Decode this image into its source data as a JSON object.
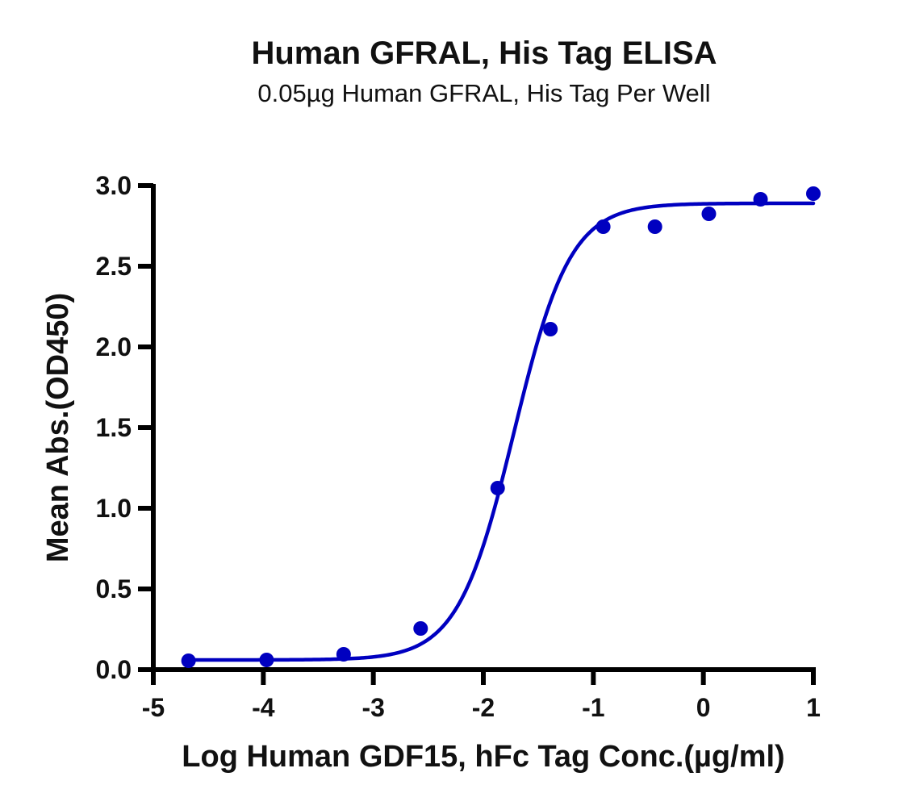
{
  "chart_data": {
    "type": "scatter",
    "title": "Human GFRAL, His Tag ELISA",
    "subtitle": "0.05µg Human GFRAL, His Tag Per Well",
    "xlabel": "Log Human GDF15, hFc Tag Conc.(µg/ml)",
    "ylabel": "Mean Abs.(OD450)",
    "xlim": [
      -5,
      1
    ],
    "ylim": [
      0,
      3.0
    ],
    "x_ticks": [
      "-5",
      "-4",
      "-3",
      "-2",
      "-1",
      "0",
      "1"
    ],
    "y_ticks": [
      "0.0",
      "0.5",
      "1.0",
      "1.5",
      "2.0",
      "2.5",
      "3.0"
    ],
    "grid": false,
    "legend": null,
    "series": [
      {
        "name": "Mean Abs.",
        "color": "#0000c0",
        "marker": "circle",
        "x": [
          -4.68,
          -3.97,
          -3.27,
          -2.57,
          -1.87,
          -1.39,
          -0.91,
          -0.44,
          0.05,
          0.52,
          1.0
        ],
        "y": [
          0.055,
          0.06,
          0.095,
          0.255,
          1.125,
          2.11,
          2.745,
          2.745,
          2.825,
          2.915,
          2.95
        ]
      }
    ],
    "fit": {
      "type": "4PL sigmoid",
      "color": "#0000c0",
      "bottom": 0.06,
      "top": 2.89,
      "log_ec50": -1.72,
      "hill_slope": 1.7,
      "x_range": [
        -4.68,
        1.0
      ]
    }
  }
}
